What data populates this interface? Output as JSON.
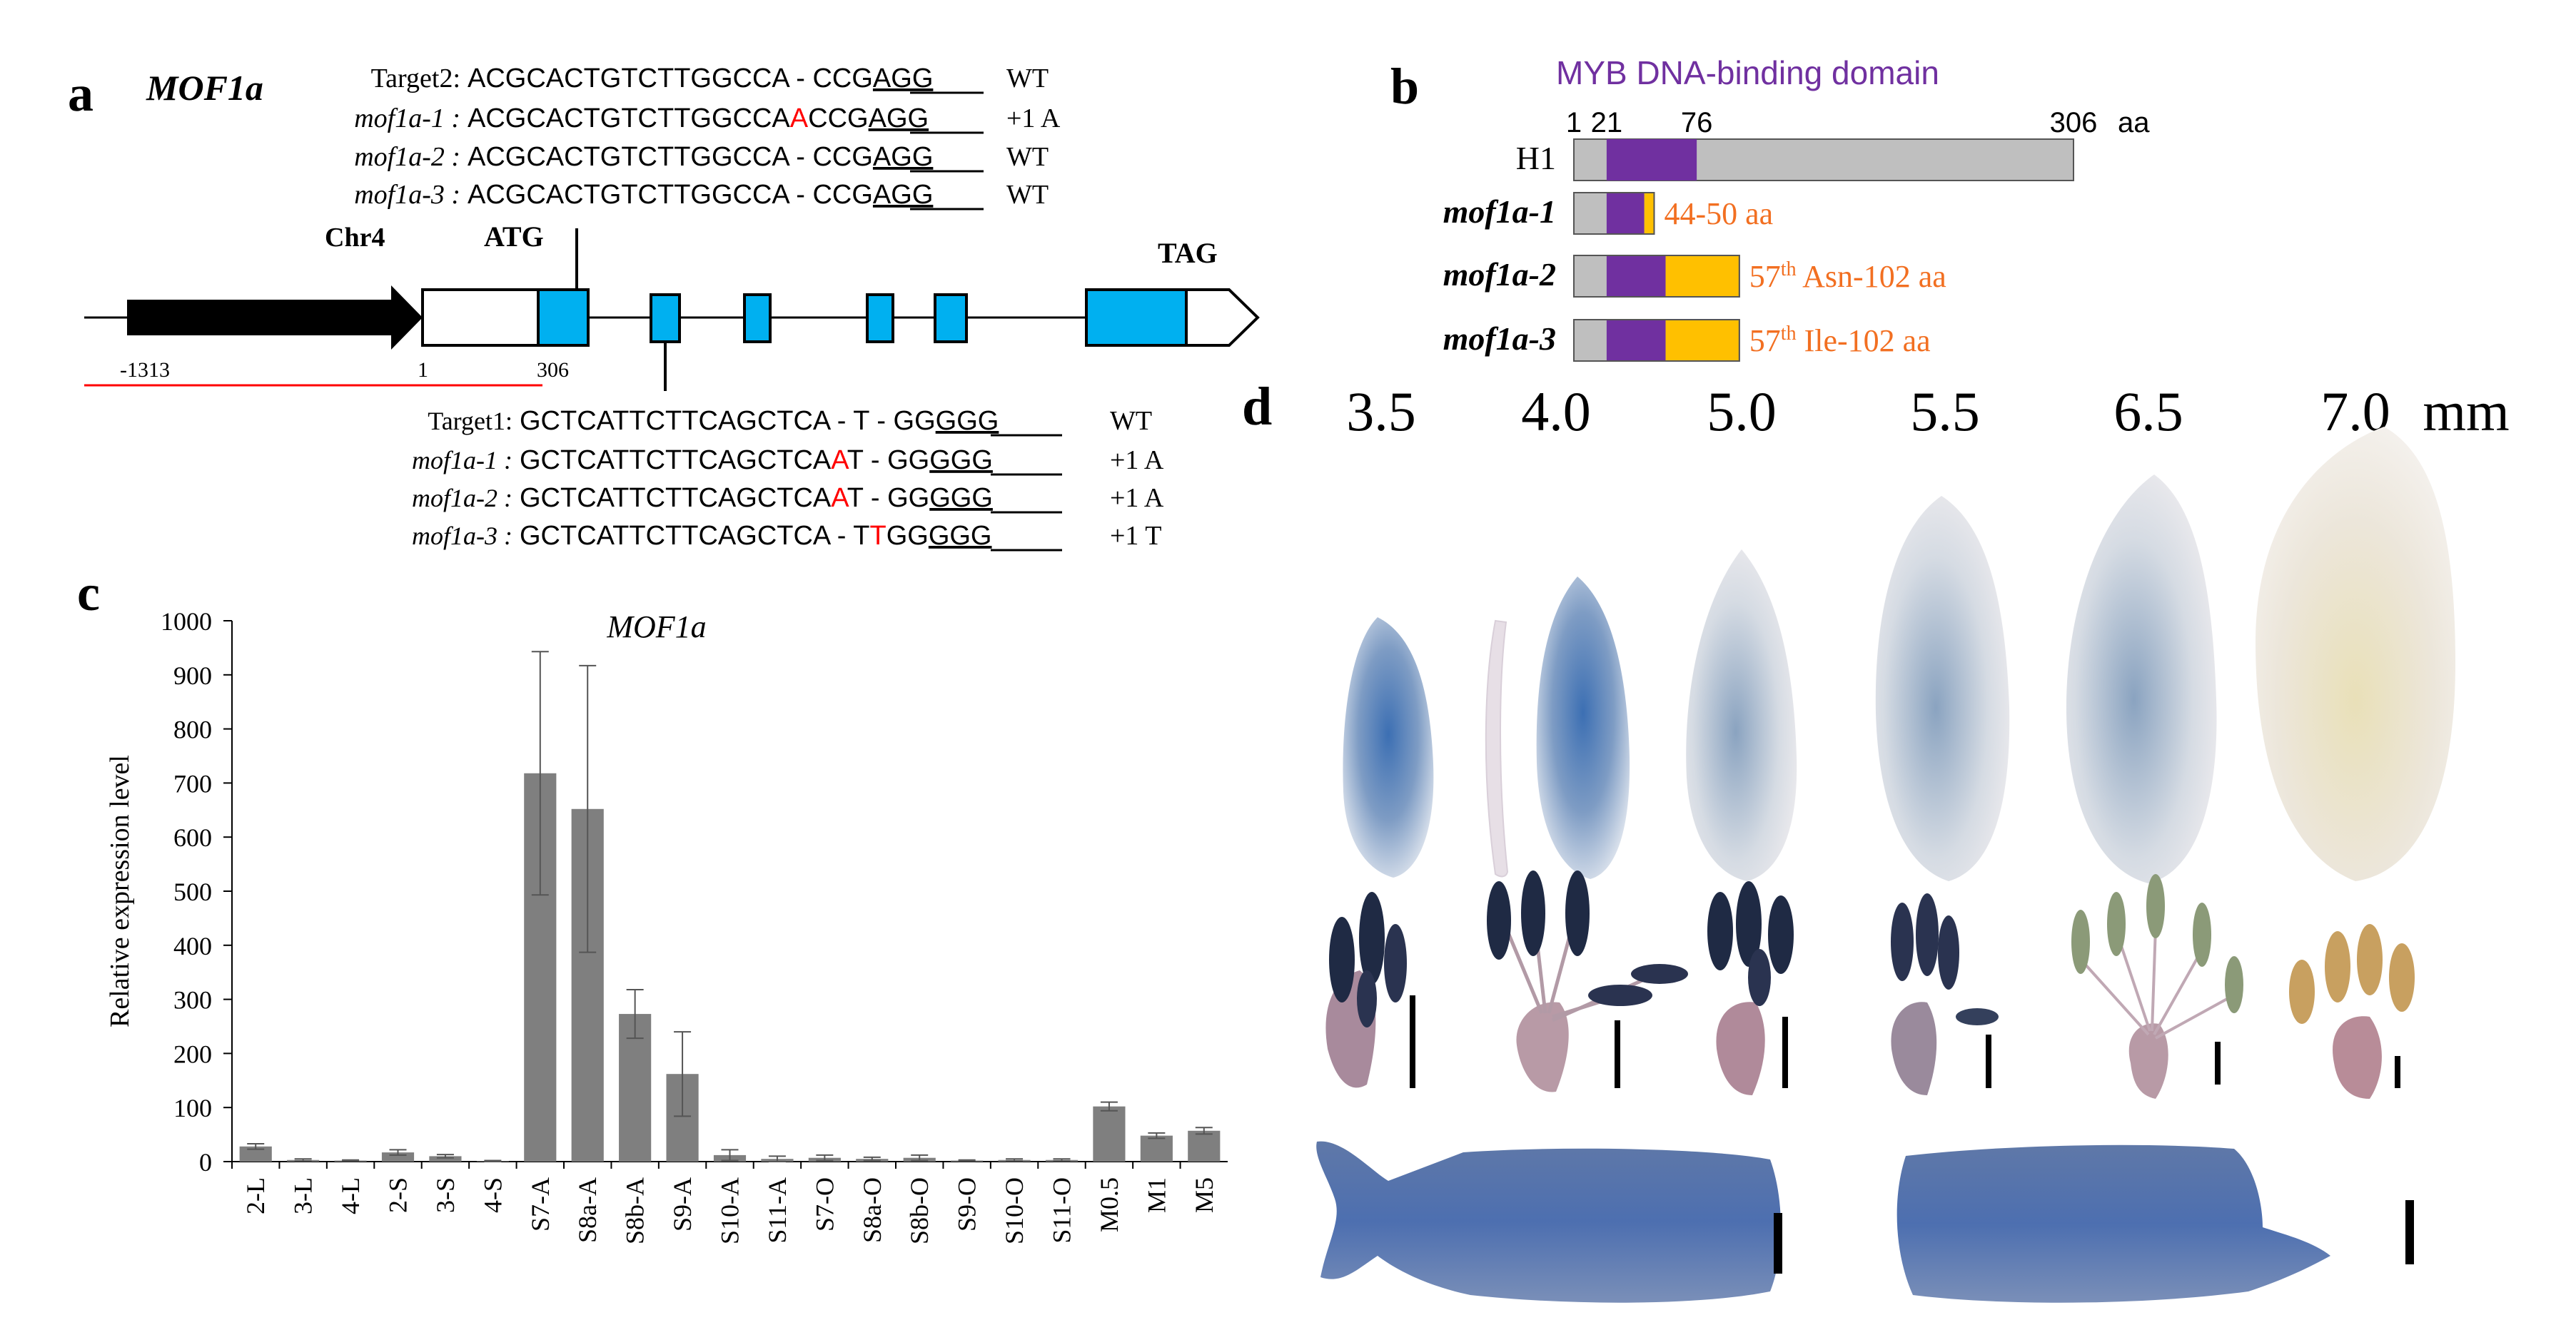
{
  "colors": {
    "black": "#000000",
    "gene_blue": "#00b0f0",
    "red": "#ff0000",
    "orange": "#f26f21",
    "purple": "#7030a0",
    "gold": "#ffc000",
    "gray": "#bfbfbf",
    "bar_gray": "#7f7f7f",
    "gus_blue": "#4a6fa5"
  },
  "panel_a": {
    "label": "a",
    "gene_name": "MOF1a",
    "chr_label": "Chr4",
    "atg_label": "ATG",
    "tag_label": "TAG",
    "coord_promoter": "-1313",
    "coord_1": "1",
    "coord_306": "306",
    "target2_rows": [
      {
        "name": "Target2:",
        "italic": false,
        "pre": "ACGCACTGTCTTGGCCA",
        "mut": "",
        "gap": " - ",
        "post": "CCG",
        "pam": "AGG",
        "note": "WT"
      },
      {
        "name": "mof1a-1 :",
        "italic": true,
        "pre": "ACGCACTGTCTTGGCCA",
        "mut": "A",
        "gap": "",
        "post": "CCG",
        "pam": "AGG",
        "note": "+1 A"
      },
      {
        "name": "mof1a-2 :",
        "italic": true,
        "pre": "ACGCACTGTCTTGGCCA",
        "mut": "",
        "gap": " - ",
        "post": "CCG",
        "pam": "AGG",
        "note": "WT"
      },
      {
        "name": "mof1a-3 :",
        "italic": true,
        "pre": "ACGCACTGTCTTGGCCA",
        "mut": "",
        "gap": " - ",
        "post": "CCG",
        "pam": "AGG",
        "note": "WT"
      }
    ],
    "target1_rows": [
      {
        "name": "Target1:",
        "italic": false,
        "text": "GCTCATTCTTCAGCTCA - T - GG",
        "mut": "",
        "after": "",
        "pam": "GGG",
        "note": "WT"
      },
      {
        "name": "mof1a-1 :",
        "italic": true,
        "text": "GCTCATTCTTCAGCTCA",
        "mut": "A",
        "after": "T - GG",
        "pam": "GGG",
        "note": "+1 A"
      },
      {
        "name": "mof1a-2 :",
        "italic": true,
        "text": "GCTCATTCTTCAGCTCA",
        "mut": "A",
        "after": "T - GG",
        "pam": "GGG",
        "note": "+1 A"
      },
      {
        "name": "mof1a-3 :",
        "italic": true,
        "text": "GCTCATTCTTCAGCTCA - T",
        "mut": "T",
        "after": "GG",
        "pam": "GGG",
        "note": "+1 T"
      }
    ]
  },
  "panel_b": {
    "label": "b",
    "domain_title": "MYB DNA-binding domain",
    "ticks": [
      "1",
      "21",
      "76",
      "306"
    ],
    "aa_unit": "aa",
    "proteins": [
      {
        "name": "H1",
        "italic": false,
        "annot_sup": "",
        "annot": ""
      },
      {
        "name": "mof1a-1",
        "italic": true,
        "annot_sup": "",
        "annot": "44-50 aa"
      },
      {
        "name": "mof1a-2",
        "italic": true,
        "annot_pre": "57",
        "annot_sup": "th",
        "annot": " Asn-102 aa"
      },
      {
        "name": "mof1a-3",
        "italic": true,
        "annot_pre": "57",
        "annot_sup": "th",
        "annot": " Ile-102  aa"
      }
    ]
  },
  "panel_c": {
    "label": "c"
  },
  "chart_data": {
    "type": "bar",
    "title": "MOF1a",
    "xlabel": "",
    "ylabel": "Relative expression level",
    "ylim": [
      0,
      1000
    ],
    "yticks": [
      0,
      100,
      200,
      300,
      400,
      500,
      600,
      700,
      800,
      900,
      1000
    ],
    "categories": [
      "2-L",
      "3-L",
      "4-L",
      "2-S",
      "3-S",
      "4-S",
      "S7-A",
      "S8a-A",
      "S8b-A",
      "S9-A",
      "S10-A",
      "S11-A",
      "S7-O",
      "S8a-O",
      "S8b-O",
      "S9-O",
      "S10-O",
      "S11-O",
      "M0.5",
      "M1",
      "M5"
    ],
    "values": [
      28,
      3,
      2,
      17,
      10,
      1,
      718,
      652,
      273,
      162,
      12,
      5,
      7,
      5,
      7,
      2,
      3,
      3,
      102,
      48,
      57
    ],
    "errors": [
      5,
      2,
      1,
      5,
      3,
      1,
      225,
      265,
      45,
      78,
      10,
      5,
      5,
      3,
      5,
      1,
      2,
      2,
      8,
      5,
      6
    ]
  },
  "panel_d": {
    "label": "d",
    "sizes": [
      "3.5",
      "4.0",
      "5.0",
      "5.5",
      "6.5",
      "7.0"
    ],
    "unit": "mm"
  }
}
